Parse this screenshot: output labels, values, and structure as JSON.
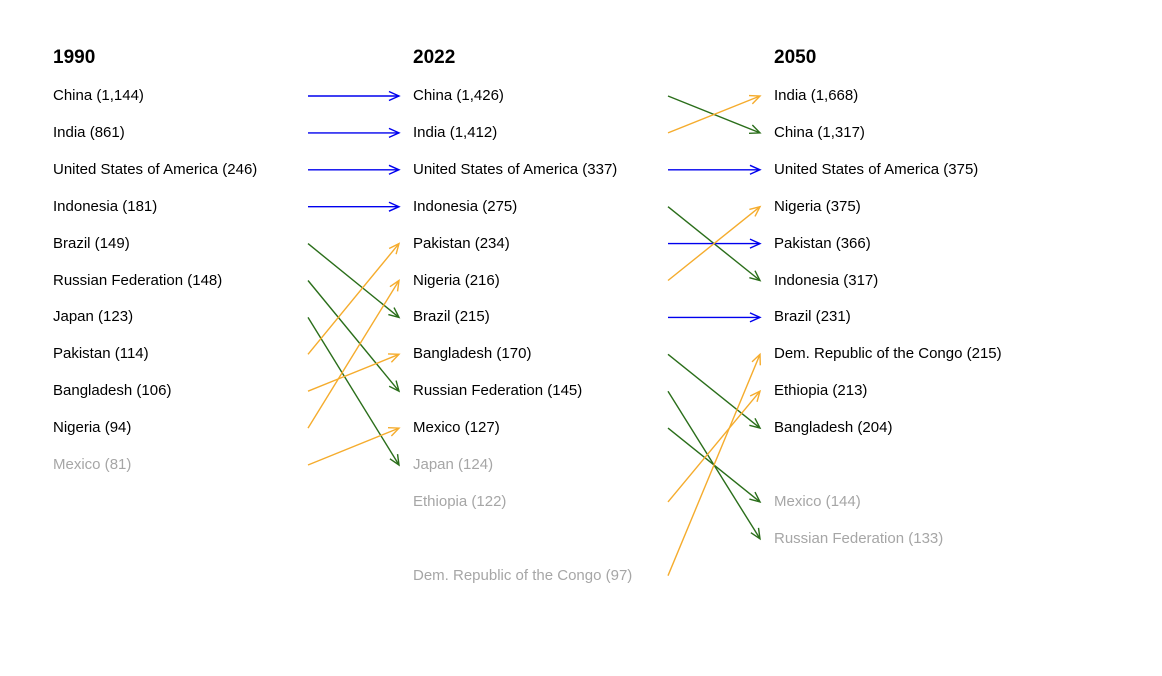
{
  "columns": [
    {
      "year": "1990",
      "entries": [
        {
          "name": "China",
          "value": "1,144",
          "faded": false
        },
        {
          "name": "India",
          "value": "861",
          "faded": false
        },
        {
          "name": "United States of America",
          "value": "246",
          "faded": false
        },
        {
          "name": "Indonesia",
          "value": "181",
          "faded": false
        },
        {
          "name": "Brazil",
          "value": "149",
          "faded": false
        },
        {
          "name": "Russian Federation",
          "value": "148",
          "faded": false
        },
        {
          "name": "Japan",
          "value": "123",
          "faded": false
        },
        {
          "name": "Pakistan",
          "value": "114",
          "faded": false
        },
        {
          "name": "Bangladesh",
          "value": "106",
          "faded": false
        },
        {
          "name": "Nigeria",
          "value": "94",
          "faded": false
        },
        {
          "name": "Mexico",
          "value": "81",
          "faded": true
        }
      ]
    },
    {
      "year": "2022",
      "entries": [
        {
          "name": "China",
          "value": "1,426",
          "faded": false
        },
        {
          "name": "India",
          "value": "1,412",
          "faded": false
        },
        {
          "name": "United States of America",
          "value": "337",
          "faded": false
        },
        {
          "name": "Indonesia",
          "value": "275",
          "faded": false
        },
        {
          "name": "Pakistan",
          "value": "234",
          "faded": false
        },
        {
          "name": "Nigeria",
          "value": "216",
          "faded": false
        },
        {
          "name": "Brazil",
          "value": "215",
          "faded": false
        },
        {
          "name": "Bangladesh",
          "value": "170",
          "faded": false
        },
        {
          "name": "Russian Federation",
          "value": "145",
          "faded": false
        },
        {
          "name": "Mexico",
          "value": "127",
          "faded": false
        },
        {
          "name": "Japan",
          "value": "124",
          "faded": true
        },
        {
          "name": "Ethiopia",
          "value": "122",
          "faded": true
        },
        {
          "name": "Dem. Republic of the Congo",
          "value": "97",
          "faded": true
        }
      ]
    },
    {
      "year": "2050",
      "entries": [
        {
          "name": "India",
          "value": "1,668",
          "faded": false
        },
        {
          "name": "China",
          "value": "1,317",
          "faded": false
        },
        {
          "name": "United States of America",
          "value": "375",
          "faded": false
        },
        {
          "name": "Nigeria",
          "value": "375",
          "faded": false
        },
        {
          "name": "Pakistan",
          "value": "366",
          "faded": false
        },
        {
          "name": "Indonesia",
          "value": "317",
          "faded": false
        },
        {
          "name": "Brazil",
          "value": "231",
          "faded": false
        },
        {
          "name": "Dem. Republic of the Congo",
          "value": "215",
          "faded": false
        },
        {
          "name": "Ethiopia",
          "value": "213",
          "faded": false
        },
        {
          "name": "Bangladesh",
          "value": "204",
          "faded": false
        },
        {
          "name": "Mexico",
          "value": "144",
          "faded": true
        },
        {
          "name": "Russian Federation",
          "value": "133",
          "faded": true
        }
      ]
    }
  ],
  "transitions": [
    [
      {
        "from": "China",
        "to": "China",
        "change": "same"
      },
      {
        "from": "India",
        "to": "India",
        "change": "same"
      },
      {
        "from": "United States of America",
        "to": "United States of America",
        "change": "same"
      },
      {
        "from": "Indonesia",
        "to": "Indonesia",
        "change": "same"
      },
      {
        "from": "Brazil",
        "to": "Brazil",
        "change": "down"
      },
      {
        "from": "Russian Federation",
        "to": "Russian Federation",
        "change": "down"
      },
      {
        "from": "Japan",
        "to": "Japan",
        "change": "down"
      },
      {
        "from": "Pakistan",
        "to": "Pakistan",
        "change": "up"
      },
      {
        "from": "Bangladesh",
        "to": "Bangladesh",
        "change": "up"
      },
      {
        "from": "Nigeria",
        "to": "Nigeria",
        "change": "up"
      },
      {
        "from": "Mexico",
        "to": "Mexico",
        "change": "up"
      }
    ],
    [
      {
        "from": "China",
        "to": "China",
        "change": "down"
      },
      {
        "from": "India",
        "to": "India",
        "change": "up"
      },
      {
        "from": "United States of America",
        "to": "United States of America",
        "change": "same"
      },
      {
        "from": "Indonesia",
        "to": "Indonesia",
        "change": "down"
      },
      {
        "from": "Pakistan",
        "to": "Pakistan",
        "change": "same"
      },
      {
        "from": "Nigeria",
        "to": "Nigeria",
        "change": "up"
      },
      {
        "from": "Brazil",
        "to": "Brazil",
        "change": "same"
      },
      {
        "from": "Bangladesh",
        "to": "Bangladesh",
        "change": "down"
      },
      {
        "from": "Russian Federation",
        "to": "Russian Federation",
        "change": "down"
      },
      {
        "from": "Mexico",
        "to": "Mexico",
        "change": "down"
      },
      {
        "from": "Ethiopia",
        "to": "Ethiopia",
        "change": "up"
      },
      {
        "from": "Dem. Republic of the Congo",
        "to": "Dem. Republic of the Congo",
        "change": "up"
      }
    ]
  ],
  "colors": {
    "same": "#0000ee",
    "up": "#f5ac2d",
    "down": "#2a6e1a",
    "faded_text": "#a6a6a6"
  }
}
